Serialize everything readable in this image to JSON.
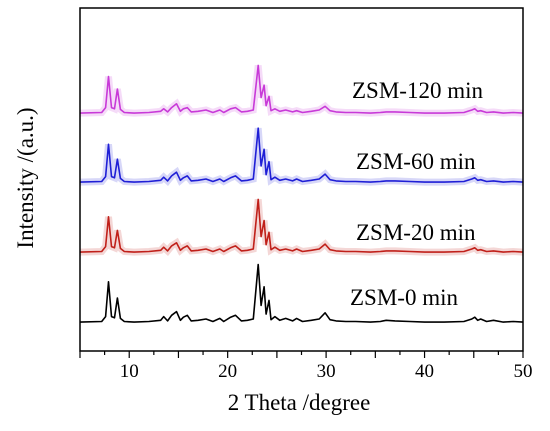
{
  "chart_data": {
    "type": "line",
    "xlabel": "2 Theta /degree",
    "ylabel": "Intensity /(a.u.)",
    "xlim": [
      5,
      50
    ],
    "xticks": [
      10,
      20,
      30,
      40,
      50
    ],
    "yticks_shown": false,
    "grid": false,
    "legend": "none",
    "series": [
      {
        "name": "ZSM-0 min",
        "color": "#000000",
        "offset": 0,
        "x": [
          5,
          7.2,
          7.6,
          7.9,
          8.2,
          8.5,
          8.8,
          9.1,
          9.5,
          10.5,
          12,
          13.2,
          13.5,
          13.9,
          14.3,
          14.8,
          15.2,
          15.5,
          15.9,
          16.3,
          17,
          17.8,
          18.5,
          19.2,
          19.6,
          20.3,
          20.8,
          21.4,
          22,
          22.6,
          23.1,
          23.4,
          23.7,
          23.9,
          24.2,
          24.4,
          24.8,
          25.3,
          25.9,
          26.6,
          27,
          27.6,
          28.5,
          29.3,
          29.9,
          30.4,
          31,
          32,
          33,
          34.5,
          35.5,
          36.1,
          37,
          38.5,
          40,
          42,
          44,
          44.8,
          45.1,
          45.4,
          45.7,
          46.3,
          47,
          48,
          49,
          50
        ],
        "y": [
          3,
          4,
          12,
          68,
          12,
          10,
          42,
          9,
          4,
          3,
          4,
          6,
          12,
          5,
          14,
          20,
          6,
          11,
          14,
          5,
          6,
          8,
          4,
          9,
          4,
          11,
          14,
          5,
          6,
          8,
          96,
          30,
          60,
          16,
          38,
          7,
          12,
          6,
          9,
          5,
          9,
          4,
          6,
          8,
          18,
          7,
          5,
          4,
          4,
          3,
          4,
          6,
          5,
          4,
          3,
          3,
          4,
          8,
          11,
          6,
          8,
          4,
          6,
          3,
          4,
          3
        ]
      },
      {
        "name": "ZSM-20 min",
        "color": "#c0201a",
        "offset": 1,
        "x": [
          5,
          7.2,
          7.6,
          7.9,
          8.2,
          8.5,
          8.8,
          9.1,
          9.5,
          10.5,
          12,
          13.2,
          13.5,
          13.9,
          14.3,
          14.8,
          15.2,
          15.5,
          15.9,
          16.3,
          17,
          17.8,
          18.5,
          19.2,
          19.6,
          20.3,
          20.8,
          21.4,
          22,
          22.6,
          23.1,
          23.4,
          23.7,
          23.9,
          24.2,
          24.4,
          24.8,
          25.3,
          25.9,
          26.6,
          27,
          27.6,
          28.5,
          29.3,
          29.9,
          30.4,
          31,
          32,
          33,
          34.5,
          35.5,
          36.1,
          37,
          38.5,
          40,
          42,
          44,
          44.8,
          45.1,
          45.4,
          45.7,
          46.3,
          47,
          48,
          49,
          50
        ],
        "y": [
          3,
          4,
          12,
          60,
          12,
          10,
          38,
          9,
          4,
          3,
          4,
          6,
          11,
          5,
          13,
          18,
          6,
          10,
          13,
          5,
          6,
          8,
          4,
          8,
          4,
          10,
          13,
          5,
          6,
          8,
          88,
          28,
          54,
          15,
          35,
          7,
          11,
          6,
          8,
          5,
          8,
          4,
          6,
          8,
          16,
          7,
          5,
          4,
          4,
          3,
          4,
          5,
          5,
          4,
          3,
          3,
          4,
          8,
          10,
          6,
          7,
          4,
          5,
          3,
          4,
          3
        ]
      },
      {
        "name": "ZSM-60 min",
        "color": "#1f1fd6",
        "offset": 2,
        "x": [
          5,
          7.2,
          7.6,
          7.9,
          8.2,
          8.5,
          8.8,
          9.1,
          9.5,
          10.5,
          12,
          13.2,
          13.5,
          13.9,
          14.3,
          14.8,
          15.2,
          15.5,
          15.9,
          16.3,
          17,
          17.8,
          18.5,
          19.2,
          19.6,
          20.3,
          20.8,
          21.4,
          22,
          22.6,
          23.1,
          23.4,
          23.7,
          23.9,
          24.2,
          24.4,
          24.8,
          25.3,
          25.9,
          26.6,
          27,
          27.6,
          28.5,
          29.3,
          29.9,
          30.4,
          31,
          32,
          33,
          34.5,
          35.5,
          36.1,
          37,
          38.5,
          40,
          42,
          44,
          44.8,
          45.1,
          45.4,
          45.7,
          46.3,
          47,
          48,
          49,
          50
        ],
        "y": [
          3,
          4,
          12,
          64,
          12,
          10,
          40,
          9,
          4,
          3,
          4,
          6,
          11,
          5,
          13,
          19,
          6,
          10,
          13,
          5,
          6,
          8,
          4,
          8,
          4,
          10,
          13,
          5,
          6,
          8,
          90,
          29,
          56,
          15,
          36,
          7,
          11,
          6,
          8,
          5,
          8,
          4,
          6,
          8,
          16,
          7,
          5,
          4,
          4,
          3,
          4,
          5,
          5,
          4,
          3,
          3,
          4,
          8,
          10,
          6,
          7,
          4,
          5,
          3,
          4,
          3
        ]
      },
      {
        "name": "ZSM-120 min",
        "color": "#c83ad8",
        "offset": 3,
        "x": [
          5,
          7.2,
          7.6,
          7.9,
          8.2,
          8.5,
          8.8,
          9.1,
          9.5,
          10.5,
          12,
          13.2,
          13.5,
          13.9,
          14.3,
          14.8,
          15.2,
          15.5,
          15.9,
          16.3,
          17,
          17.8,
          18.5,
          19.2,
          19.6,
          20.3,
          20.8,
          21.4,
          22,
          22.6,
          23.1,
          23.4,
          23.7,
          23.9,
          24.2,
          24.4,
          24.8,
          25.3,
          25.9,
          26.6,
          27,
          27.6,
          28.5,
          29.3,
          29.9,
          30.4,
          31,
          32,
          33,
          34.5,
          35.5,
          36.1,
          37,
          38.5,
          40,
          42,
          44,
          44.8,
          45.1,
          45.4,
          45.7,
          46.3,
          47,
          48,
          49,
          50
        ],
        "y": [
          3,
          4,
          12,
          62,
          12,
          10,
          42,
          9,
          4,
          3,
          4,
          6,
          10,
          5,
          12,
          18,
          6,
          10,
          12,
          5,
          6,
          8,
          4,
          8,
          4,
          10,
          12,
          5,
          6,
          8,
          80,
          28,
          48,
          15,
          30,
          7,
          10,
          6,
          8,
          5,
          7,
          4,
          6,
          8,
          14,
          7,
          5,
          4,
          4,
          3,
          4,
          5,
          5,
          4,
          3,
          3,
          4,
          8,
          10,
          6,
          7,
          4,
          5,
          3,
          4,
          3
        ]
      }
    ]
  }
}
